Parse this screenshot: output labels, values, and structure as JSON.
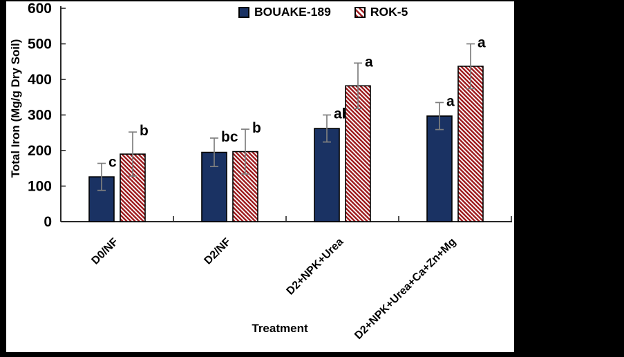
{
  "canvas": {
    "background": "#000000",
    "panel_background": "#ffffff"
  },
  "chart_data": {
    "type": "bar",
    "title": "",
    "xlabel": "Treatment",
    "ylabel": "Total Iron (Mg/g Dry Soil)",
    "ylim": [
      0,
      600
    ],
    "ytick_step": 100,
    "grid": false,
    "legend_position": "top-center",
    "categories": [
      "D0/NF",
      "D2/NF",
      "D2+NPK+Urea",
      "D2+NPK+Urea+Ca+Zn+Mg"
    ],
    "series": [
      {
        "name": "BOUAKE-189",
        "style": "solid",
        "color": "#1a3263",
        "values": [
          126,
          195,
          262,
          297
        ],
        "errors": [
          38,
          40,
          38,
          38
        ],
        "sig_letters": [
          "c",
          "bc",
          "ab",
          "a"
        ]
      },
      {
        "name": "ROK-5",
        "style": "hatched-diagonal",
        "color": "#9e1c1f",
        "values": [
          190,
          197,
          382,
          437
        ],
        "errors": [
          62,
          63,
          64,
          63
        ],
        "sig_letters": [
          "b",
          "b",
          "a",
          "a"
        ]
      }
    ],
    "error_bar_color": "#7f7f7f",
    "bar_border_color": "#000000",
    "axis_color": "#262626"
  }
}
